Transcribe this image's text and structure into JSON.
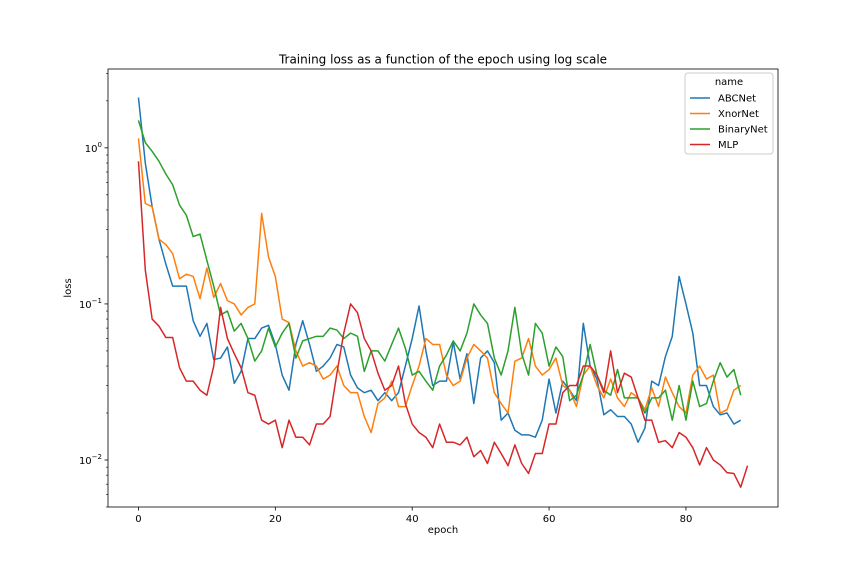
{
  "chart_data": {
    "type": "line",
    "title": "Training loss as a function of the epoch using log scale",
    "xlabel": "epoch",
    "ylabel": "loss",
    "xlim": [
      -4.45,
      93.45
    ],
    "ylim": [
      0.005,
      3.2
    ],
    "yscale": "log",
    "xticks": [
      0,
      20,
      40,
      60,
      80
    ],
    "yticks": [
      {
        "value": 0.01,
        "base": "10",
        "exp": "−2"
      },
      {
        "value": 0.1,
        "base": "10",
        "exp": "−1"
      },
      {
        "value": 1,
        "base": "10",
        "exp": "0"
      }
    ],
    "grid": false,
    "legend": {
      "title": "name",
      "position": "top-right"
    },
    "series": [
      {
        "name": "ABCNet",
        "color": "#1f77b4",
        "values": [
          2.1,
          0.8,
          0.42,
          0.26,
          0.18,
          0.13,
          0.13,
          0.13,
          0.078,
          0.062,
          0.075,
          0.044,
          0.045,
          0.053,
          0.031,
          0.037,
          0.06,
          0.06,
          0.07,
          0.073,
          0.055,
          0.035,
          0.028,
          0.055,
          0.078,
          0.055,
          0.037,
          0.04,
          0.045,
          0.055,
          0.053,
          0.035,
          0.029,
          0.027,
          0.028,
          0.024,
          0.027,
          0.024,
          0.027,
          0.04,
          0.06,
          0.097,
          0.05,
          0.03,
          0.032,
          0.032,
          0.057,
          0.033,
          0.048,
          0.023,
          0.045,
          0.05,
          0.042,
          0.018,
          0.02,
          0.0155,
          0.0145,
          0.0145,
          0.014,
          0.018,
          0.033,
          0.02,
          0.032,
          0.028,
          0.024,
          0.075,
          0.04,
          0.033,
          0.0195,
          0.021,
          0.019,
          0.019,
          0.017,
          0.013,
          0.016,
          0.032,
          0.03,
          0.046,
          0.062,
          0.15,
          0.1,
          0.065,
          0.03,
          0.03,
          0.022,
          0.0195,
          0.02,
          0.017,
          0.018
        ]
      },
      {
        "name": "XnorNet",
        "color": "#ff7f0e",
        "values": [
          1.15,
          0.44,
          0.42,
          0.26,
          0.24,
          0.21,
          0.145,
          0.155,
          0.15,
          0.108,
          0.17,
          0.11,
          0.135,
          0.105,
          0.1,
          0.085,
          0.095,
          0.1,
          0.38,
          0.2,
          0.15,
          0.08,
          0.076,
          0.05,
          0.04,
          0.042,
          0.04,
          0.033,
          0.035,
          0.04,
          0.03,
          0.027,
          0.027,
          0.019,
          0.015,
          0.023,
          0.025,
          0.032,
          0.022,
          0.022,
          0.03,
          0.04,
          0.06,
          0.055,
          0.055,
          0.035,
          0.03,
          0.032,
          0.045,
          0.055,
          0.05,
          0.045,
          0.027,
          0.023,
          0.02,
          0.043,
          0.045,
          0.06,
          0.04,
          0.035,
          0.038,
          0.045,
          0.03,
          0.028,
          0.022,
          0.035,
          0.04,
          0.03,
          0.025,
          0.033,
          0.025,
          0.022,
          0.027,
          0.025,
          0.021,
          0.029,
          0.022,
          0.034,
          0.027,
          0.022,
          0.02,
          0.035,
          0.04,
          0.033,
          0.035,
          0.02,
          0.021,
          0.028,
          0.03
        ]
      },
      {
        "name": "BinaryNet",
        "color": "#2ca02c",
        "values": [
          1.5,
          1.08,
          0.95,
          0.82,
          0.68,
          0.58,
          0.43,
          0.37,
          0.27,
          0.28,
          0.19,
          0.13,
          0.085,
          0.09,
          0.067,
          0.075,
          0.06,
          0.043,
          0.05,
          0.07,
          0.053,
          0.065,
          0.075,
          0.045,
          0.058,
          0.06,
          0.062,
          0.062,
          0.07,
          0.068,
          0.06,
          0.065,
          0.062,
          0.037,
          0.05,
          0.05,
          0.043,
          0.055,
          0.07,
          0.052,
          0.035,
          0.037,
          0.032,
          0.028,
          0.04,
          0.047,
          0.058,
          0.05,
          0.065,
          0.1,
          0.085,
          0.075,
          0.045,
          0.035,
          0.05,
          0.095,
          0.048,
          0.035,
          0.075,
          0.065,
          0.04,
          0.053,
          0.046,
          0.024,
          0.026,
          0.035,
          0.055,
          0.035,
          0.028,
          0.026,
          0.038,
          0.025,
          0.025,
          0.025,
          0.02,
          0.025,
          0.025,
          0.028,
          0.018,
          0.03,
          0.018,
          0.032,
          0.022,
          0.023,
          0.032,
          0.042,
          0.034,
          0.038,
          0.026
        ]
      },
      {
        "name": "MLP",
        "color": "#d62728",
        "values": [
          0.82,
          0.165,
          0.08,
          0.072,
          0.061,
          0.061,
          0.039,
          0.032,
          0.032,
          0.028,
          0.026,
          0.04,
          0.095,
          0.06,
          0.048,
          0.039,
          0.027,
          0.026,
          0.018,
          0.017,
          0.018,
          0.012,
          0.018,
          0.014,
          0.014,
          0.0125,
          0.017,
          0.017,
          0.019,
          0.036,
          0.065,
          0.1,
          0.088,
          0.06,
          0.05,
          0.036,
          0.028,
          0.03,
          0.04,
          0.023,
          0.017,
          0.015,
          0.014,
          0.012,
          0.017,
          0.013,
          0.013,
          0.0125,
          0.014,
          0.0105,
          0.0115,
          0.0095,
          0.013,
          0.011,
          0.0092,
          0.0125,
          0.0095,
          0.0082,
          0.011,
          0.011,
          0.017,
          0.017,
          0.027,
          0.03,
          0.03,
          0.04,
          0.04,
          0.035,
          0.027,
          0.05,
          0.027,
          0.036,
          0.034,
          0.025,
          0.018,
          0.018,
          0.013,
          0.0133,
          0.012,
          0.015,
          0.014,
          0.012,
          0.0093,
          0.012,
          0.01,
          0.0093,
          0.0083,
          0.0082,
          0.0067,
          0.0092
        ]
      }
    ]
  }
}
